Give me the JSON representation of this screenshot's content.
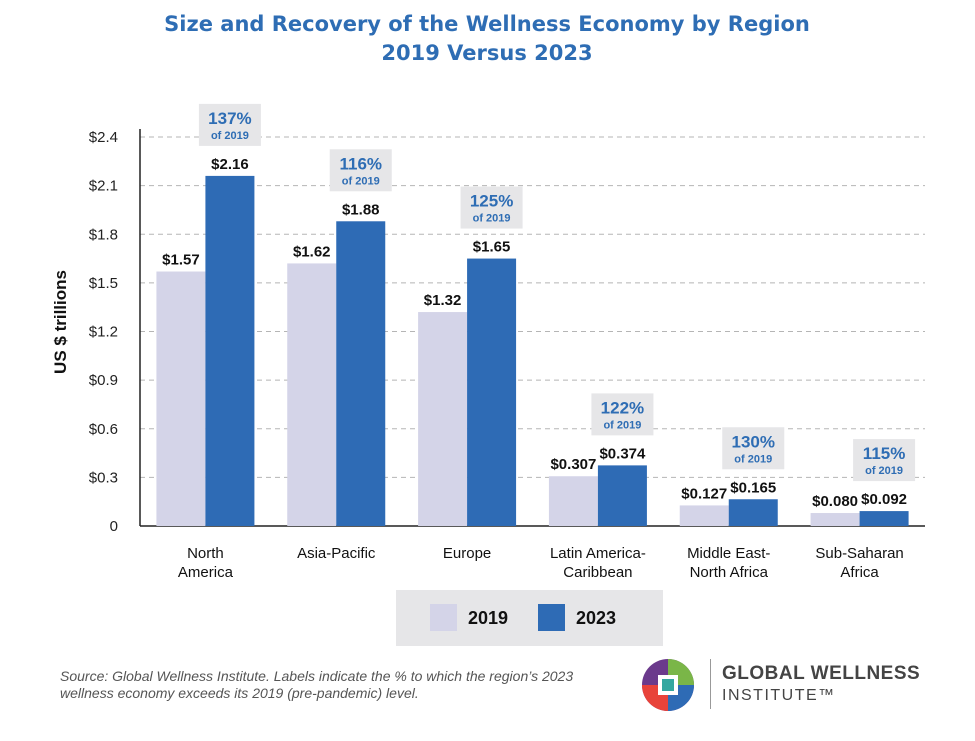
{
  "chart_data": {
    "type": "bar",
    "title": "Size and Recovery of the Wellness Economy by Region",
    "subtitle": "2019 Versus 2023",
    "ylabel": "US $ trillions",
    "xlabel": "",
    "ylim": [
      0,
      2.4
    ],
    "yticks": [
      {
        "value": 0,
        "label": "0"
      },
      {
        "value": 0.3,
        "label": "$0.3"
      },
      {
        "value": 0.6,
        "label": "$0.6"
      },
      {
        "value": 0.9,
        "label": "$0.9"
      },
      {
        "value": 1.2,
        "label": "$1.2"
      },
      {
        "value": 1.5,
        "label": "$1.5"
      },
      {
        "value": 1.8,
        "label": "$1.8"
      },
      {
        "value": 2.1,
        "label": "$2.1"
      },
      {
        "value": 2.4,
        "label": "$2.4"
      }
    ],
    "grid": true,
    "categories": [
      [
        "North",
        "America"
      ],
      [
        "Asia-Pacific"
      ],
      [
        "Europe"
      ],
      [
        "Latin America-",
        "Caribbean"
      ],
      [
        "Middle East-",
        "North Africa"
      ],
      [
        "Sub-Saharan",
        "Africa"
      ]
    ],
    "series": [
      {
        "name": "2019",
        "color": "#d4d4e8",
        "values": [
          1.57,
          1.62,
          1.32,
          0.307,
          0.127,
          0.08
        ],
        "labels": [
          "$1.57",
          "$1.62",
          "$1.32",
          "$0.307",
          "$0.127",
          "$0.080"
        ]
      },
      {
        "name": "2023",
        "color": "#2e6bb5",
        "values": [
          2.16,
          1.88,
          1.65,
          0.374,
          0.165,
          0.092
        ],
        "labels": [
          "$2.16",
          "$1.88",
          "$1.65",
          "$0.374",
          "$0.165",
          "$0.092"
        ]
      }
    ],
    "annotations": [
      {
        "category": 0,
        "pct": "137%",
        "sub": "of 2019"
      },
      {
        "category": 1,
        "pct": "116%",
        "sub": "of 2019"
      },
      {
        "category": 2,
        "pct": "125%",
        "sub": "of 2019"
      },
      {
        "category": 3,
        "pct": "122%",
        "sub": "of 2019"
      },
      {
        "category": 4,
        "pct": "130%",
        "sub": "of 2019"
      },
      {
        "category": 5,
        "pct": "115%",
        "sub": "of 2019"
      }
    ],
    "legend_position": "bottom-center"
  },
  "footer": {
    "source": "Source: Global Wellness Institute. Labels indicate the % to which the region’s 2023 wellness economy exceeds its 2019 (pre-pandemic) level."
  },
  "logo": {
    "line1": "GLOBAL WELLNESS",
    "line2": "INSTITUTE™",
    "icon": "gwi-logo-icon"
  }
}
